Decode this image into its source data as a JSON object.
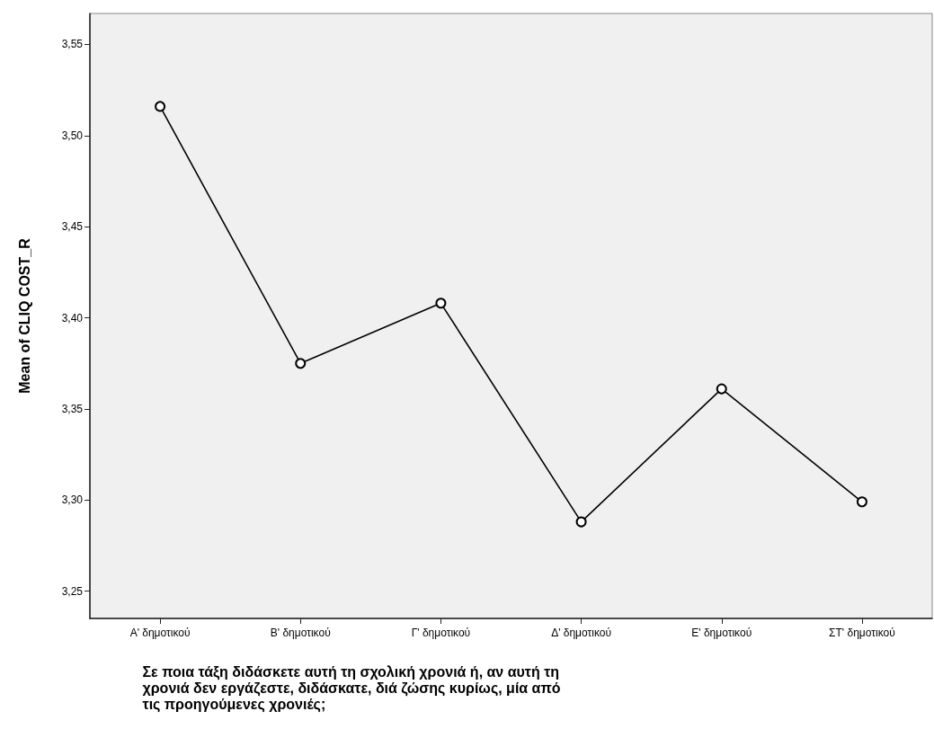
{
  "chart_data": {
    "type": "line",
    "xlabel": "Σε ποια τάξη διδάσκετε αυτή τη σχολική χρονιά ή, αν αυτή τη χρονιά δεν εργάζεστε, διδάσκατε, διά ζώσης κυρίως, μία από τις προηγούμενες χρονιές;",
    "ylabel": "Mean of CLIQ COST_R",
    "categories": [
      "Α' δημοτικού",
      "Β' δημοτικού",
      "Γ' δημοτικού",
      "Δ' δημοτικού",
      "Ε' δημοτικού",
      "ΣΤ' δημοτικού"
    ],
    "series": [
      {
        "color": "#000000",
        "values": [
          3.516,
          3.375,
          3.408,
          3.288,
          3.361,
          3.299
        ]
      }
    ],
    "ylim": [
      3.235,
      3.567
    ],
    "yticks": [
      {
        "value": 3.25,
        "label": "3,25"
      },
      {
        "value": 3.3,
        "label": "3,30"
      },
      {
        "value": 3.35,
        "label": "3,35"
      },
      {
        "value": 3.4,
        "label": "3,40"
      },
      {
        "value": 3.45,
        "label": "3,45"
      },
      {
        "value": 3.5,
        "label": "3,50"
      },
      {
        "value": 3.55,
        "label": "3,55"
      }
    ],
    "grid": false,
    "marker": "circle",
    "line_style": "solid"
  }
}
